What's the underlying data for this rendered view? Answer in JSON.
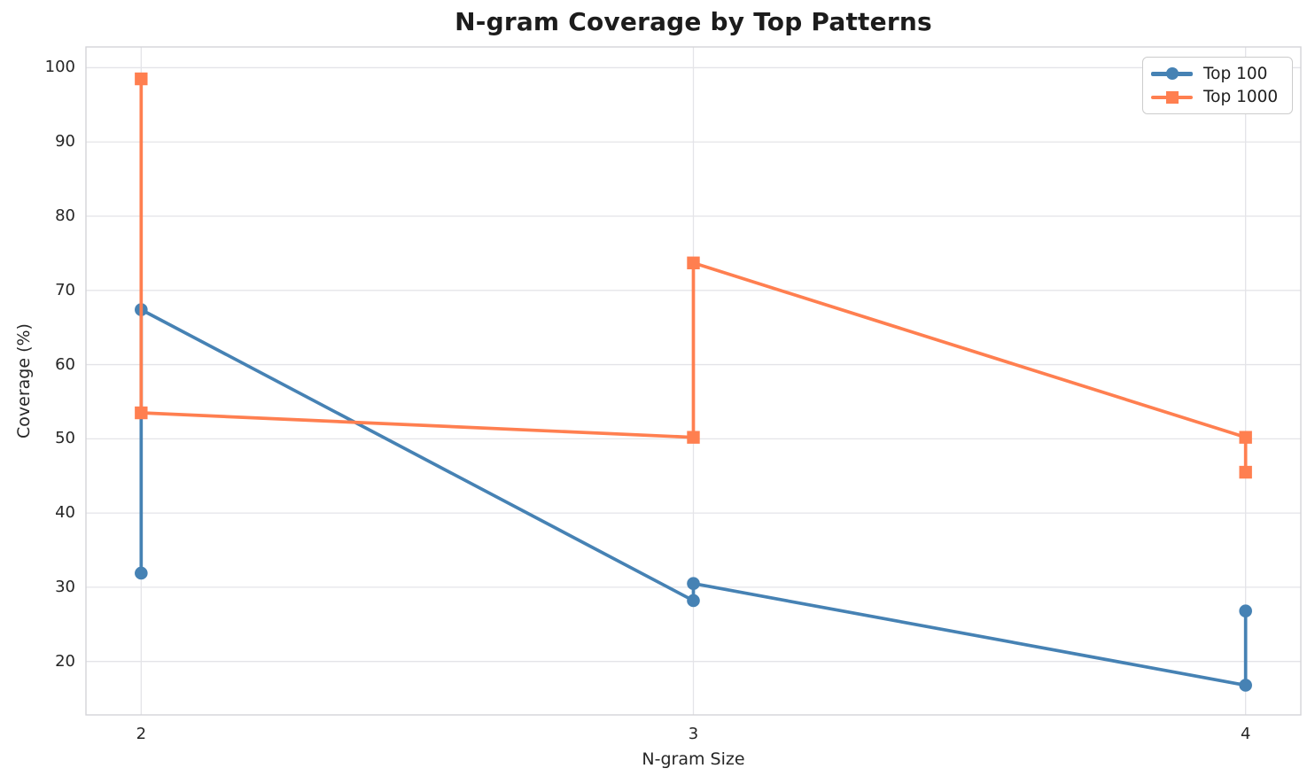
{
  "chart_data": {
    "type": "line",
    "title": "N-gram Coverage by Top Patterns",
    "xlabel": "N-gram Size",
    "ylabel": "Coverage (%)",
    "x_ticks": [
      2,
      3,
      4
    ],
    "y_ticks": [
      20,
      30,
      40,
      50,
      60,
      70,
      80,
      90,
      100
    ],
    "xlim": [
      1.9,
      4.1
    ],
    "ylim": [
      12.8,
      102.8
    ],
    "grid": true,
    "legend_position": "top-right",
    "series": [
      {
        "name": "Top 100",
        "color": "#4682B4",
        "marker": "circle",
        "x": [
          2,
          2,
          3,
          3,
          4,
          4
        ],
        "y": [
          31.9,
          67.4,
          28.2,
          30.5,
          16.8,
          26.8
        ]
      },
      {
        "name": "Top 1000",
        "color": "#FF7F50",
        "marker": "square",
        "x": [
          2,
          2,
          3,
          3,
          4,
          4
        ],
        "y": [
          98.5,
          53.5,
          50.2,
          73.7,
          50.2,
          45.5
        ]
      }
    ],
    "colors": {
      "background": "#ffffff",
      "grid": "#e4e4e8",
      "spine": "#d4d4d8",
      "text": "#262626",
      "title": "#1c1c1c",
      "legend_border": "#cccccc"
    }
  }
}
